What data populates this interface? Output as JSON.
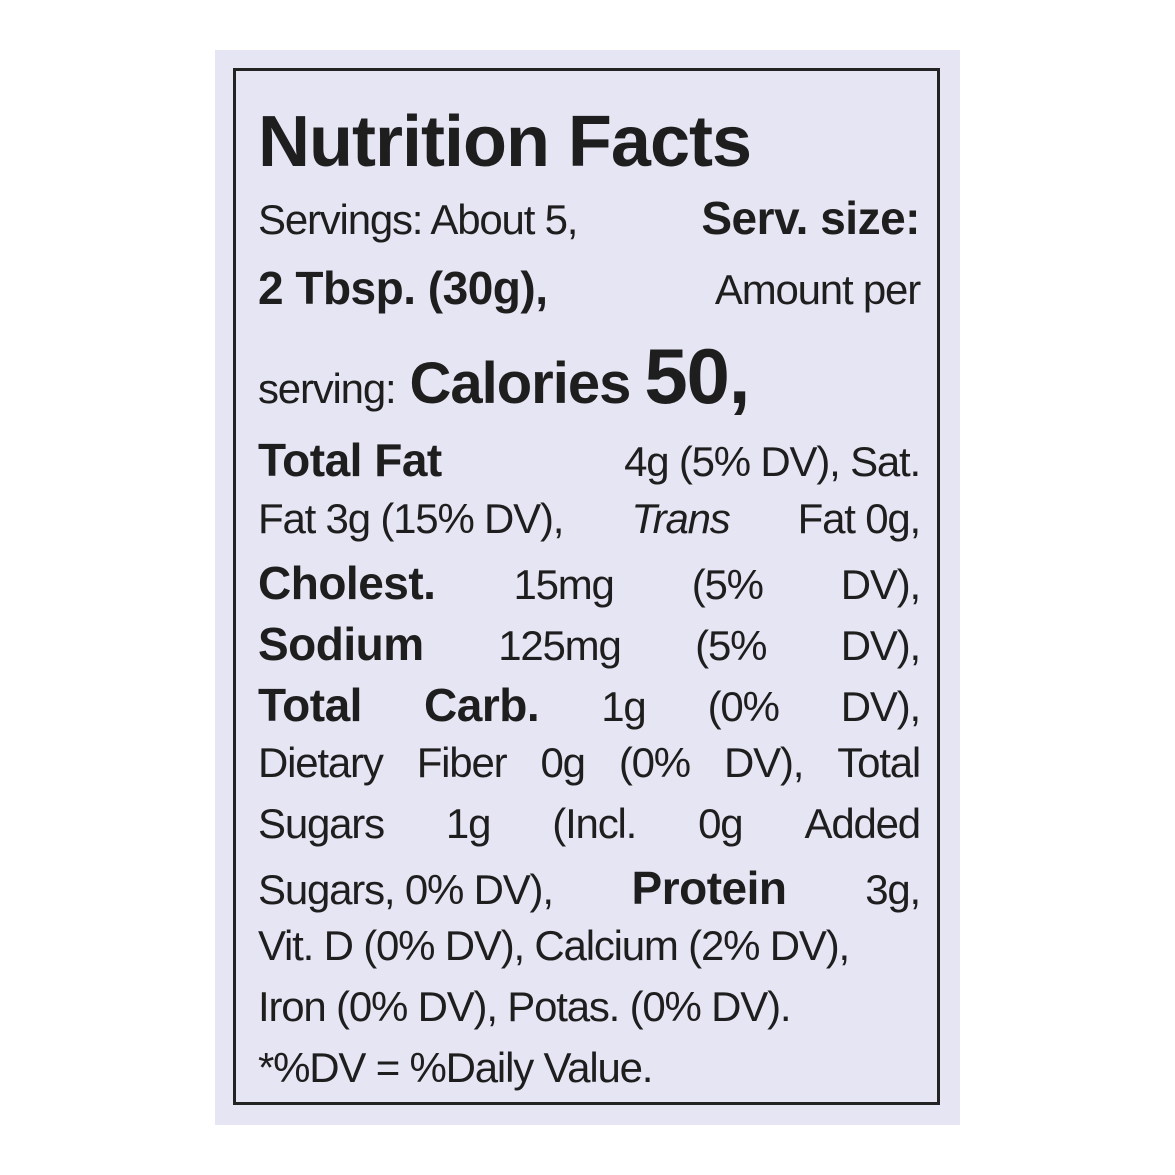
{
  "label": {
    "title": "Nutrition Facts",
    "lines": [
      [
        "Servings: About 5,",
        "Serv. size:"
      ],
      [
        "2 Tbsp. (30g),",
        "Amount per"
      ],
      [
        "serving:",
        "Calories",
        "50,"
      ],
      [
        "Total Fat",
        "4g (5% DV), Sat."
      ],
      [
        "Fat 3g (15% DV),",
        "Trans",
        "Fat 0g,"
      ],
      [
        "Cholest.",
        "15mg",
        "(5%",
        "DV),"
      ],
      [
        "Sodium",
        "125mg",
        "(5%",
        "DV),"
      ],
      [
        "Total",
        "Carb.",
        "1g",
        "(0%",
        "DV),"
      ],
      [
        "Dietary",
        "Fiber",
        "0g",
        "(0%",
        "DV),",
        "Total"
      ],
      [
        "Sugars",
        "1g",
        "(Incl.",
        "0g",
        "Added"
      ],
      [
        "Sugars, 0% DV),",
        "Protein",
        "3g,"
      ],
      [
        "Vit. D (0% DV), Calcium (2% DV),"
      ],
      [
        "Iron (0% DV), Potas. (0% DV)."
      ],
      [
        "*%DV = %Daily Value."
      ]
    ]
  }
}
